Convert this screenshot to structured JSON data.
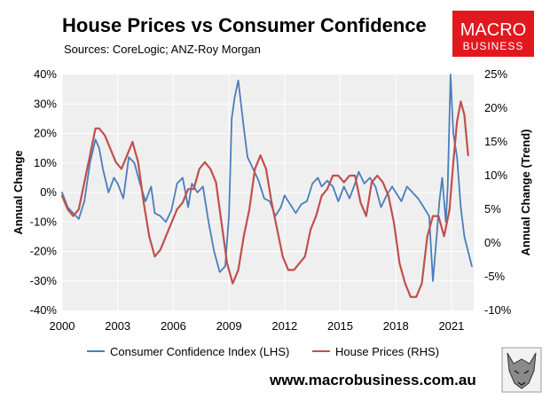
{
  "brand": {
    "logo_line1": "MACRO",
    "logo_line2": "BUSINESS",
    "logo_color": "#e1191e",
    "website": "www.macrobusiness.com.au",
    "mascot_icon": "wolf-head-icon"
  },
  "chart_data": {
    "type": "line",
    "title": "House Prices vs Consumer Confidence",
    "subtitle": "Sources: CoreLogic; ANZ-Roy Morgan",
    "ylabel_left": "Annual Change",
    "ylabel_right": "Annual Change (Trend)",
    "xlim": [
      2000,
      2022.2
    ],
    "ylim_left": [
      -40,
      40
    ],
    "ylim_right": [
      -10,
      25
    ],
    "x_ticks": [
      2000,
      2003,
      2006,
      2009,
      2012,
      2015,
      2018,
      2021
    ],
    "y_ticks_left": [
      -40,
      -30,
      -20,
      -10,
      0,
      10,
      20,
      30,
      40
    ],
    "y_ticks_left_labels": [
      "-40%",
      "-30%",
      "-20%",
      "-10%",
      "0%",
      "10%",
      "20%",
      "30%",
      "40%"
    ],
    "y_ticks_right": [
      -10,
      -5,
      0,
      5,
      10,
      15,
      20,
      25
    ],
    "y_ticks_right_labels": [
      "-10%",
      "-5%",
      "0%",
      "5%",
      "10%",
      "15%",
      "20%",
      "25%"
    ],
    "grid": true,
    "legend_position": "bottom",
    "series": [
      {
        "name": "Consumer Confidence Index (LHS)",
        "axis": "left",
        "color": "#4a7ebb",
        "x": [
          2000.0,
          2000.3,
          2000.6,
          2000.9,
          2001.2,
          2001.5,
          2001.8,
          2002.0,
          2002.2,
          2002.5,
          2002.8,
          2003.0,
          2003.3,
          2003.6,
          2003.9,
          2004.2,
          2004.5,
          2004.8,
          2005.0,
          2005.3,
          2005.6,
          2005.9,
          2006.2,
          2006.5,
          2006.8,
          2007.0,
          2007.3,
          2007.6,
          2007.9,
          2008.2,
          2008.5,
          2008.8,
          2009.0,
          2009.15,
          2009.3,
          2009.5,
          2009.8,
          2010.0,
          2010.3,
          2010.6,
          2010.9,
          2011.2,
          2011.5,
          2011.8,
          2012.0,
          2012.3,
          2012.6,
          2012.9,
          2013.2,
          2013.5,
          2013.8,
          2014.0,
          2014.3,
          2014.6,
          2014.9,
          2015.2,
          2015.5,
          2015.8,
          2016.0,
          2016.3,
          2016.6,
          2016.9,
          2017.2,
          2017.5,
          2017.8,
          2018.0,
          2018.3,
          2018.6,
          2018.9,
          2019.2,
          2019.5,
          2019.8,
          2020.0,
          2020.2,
          2020.35,
          2020.5,
          2020.7,
          2020.8,
          2020.95,
          2021.1,
          2021.3,
          2021.5,
          2021.7,
          2021.9,
          2022.1
        ],
        "values": [
          0,
          -5,
          -7,
          -9,
          -3,
          10,
          18,
          15,
          8,
          0,
          5,
          3,
          -2,
          12,
          10,
          3,
          -3,
          2,
          -7,
          -8,
          -10,
          -6,
          3,
          5,
          -5,
          3,
          0,
          2,
          -10,
          -20,
          -27,
          -25,
          -8,
          25,
          32,
          38,
          22,
          12,
          8,
          4,
          -2,
          -3,
          -8,
          -5,
          -1,
          -4,
          -7,
          -4,
          -3,
          3,
          5,
          2,
          4,
          2,
          -3,
          2,
          -2,
          3,
          7,
          3,
          5,
          2,
          -5,
          -1,
          2,
          0,
          -3,
          2,
          0,
          -2,
          -5,
          -8,
          -30,
          -15,
          -3,
          5,
          -10,
          2,
          40,
          20,
          12,
          -5,
          -15,
          -20,
          -25
        ]
      },
      {
        "name": "House Prices (RHS)",
        "axis": "right",
        "color": "#c0504d",
        "x": [
          2000.0,
          2000.3,
          2000.6,
          2000.9,
          2001.2,
          2001.5,
          2001.8,
          2002.0,
          2002.3,
          2002.6,
          2002.9,
          2003.2,
          2003.5,
          2003.8,
          2004.1,
          2004.4,
          2004.7,
          2005.0,
          2005.3,
          2005.6,
          2005.9,
          2006.2,
          2006.5,
          2006.8,
          2007.1,
          2007.4,
          2007.7,
          2008.0,
          2008.3,
          2008.6,
          2008.9,
          2009.2,
          2009.5,
          2009.8,
          2010.1,
          2010.4,
          2010.7,
          2011.0,
          2011.3,
          2011.6,
          2011.9,
          2012.2,
          2012.5,
          2012.8,
          2013.1,
          2013.4,
          2013.7,
          2014.0,
          2014.3,
          2014.6,
          2014.9,
          2015.2,
          2015.5,
          2015.8,
          2016.1,
          2016.4,
          2016.7,
          2017.0,
          2017.3,
          2017.6,
          2017.9,
          2018.2,
          2018.5,
          2018.8,
          2019.1,
          2019.4,
          2019.7,
          2020.0,
          2020.3,
          2020.6,
          2020.9,
          2021.1,
          2021.3,
          2021.5,
          2021.7,
          2021.9
        ],
        "values": [
          7,
          5,
          4,
          5,
          9,
          13,
          17,
          17,
          16,
          14,
          12,
          11,
          13,
          15,
          12,
          6,
          1,
          -2,
          -1,
          1,
          3,
          5,
          6,
          8,
          8,
          11,
          12,
          11,
          9,
          3,
          -3,
          -6,
          -4,
          1,
          5,
          11,
          13,
          11,
          6,
          2,
          -2,
          -4,
          -4,
          -3,
          -2,
          2,
          4,
          7,
          8,
          10,
          10,
          9,
          10,
          10,
          6,
          4,
          9,
          10,
          9,
          7,
          3,
          -3,
          -6,
          -8,
          -8,
          -6,
          1,
          4,
          4,
          1,
          5,
          12,
          18,
          21,
          19,
          13
        ]
      }
    ]
  }
}
